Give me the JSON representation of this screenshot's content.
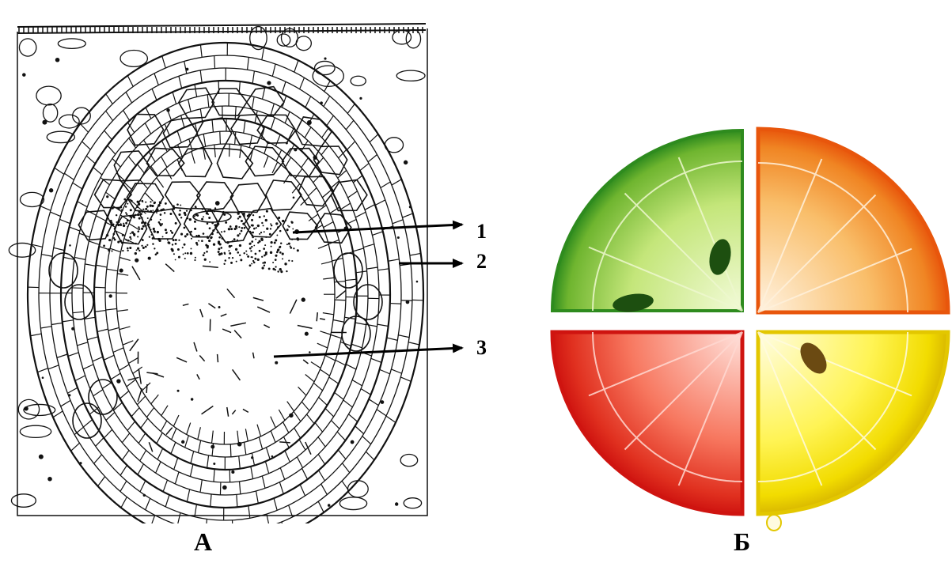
{
  "panels": {
    "a_label": "А",
    "b_label": "Б"
  },
  "markers": {
    "one": "1",
    "two": "2",
    "three": "3"
  },
  "colors": {
    "ink": "#111111",
    "lime_peel": "#2e8b1e",
    "lime_flesh": "#b8e06a",
    "orange_peel": "#e8560c",
    "orange_flesh": "#f7b14a",
    "grapefruit_peel": "#d81a12",
    "grapefruit_flesh": "#f56a55",
    "lemon_peel": "#e3c700",
    "lemon_flesh": "#fff45a"
  },
  "icons": {
    "diagram_a": "plant-tissue-cross-section-drawing",
    "diagram_b": "citrus-quarter-slices"
  }
}
